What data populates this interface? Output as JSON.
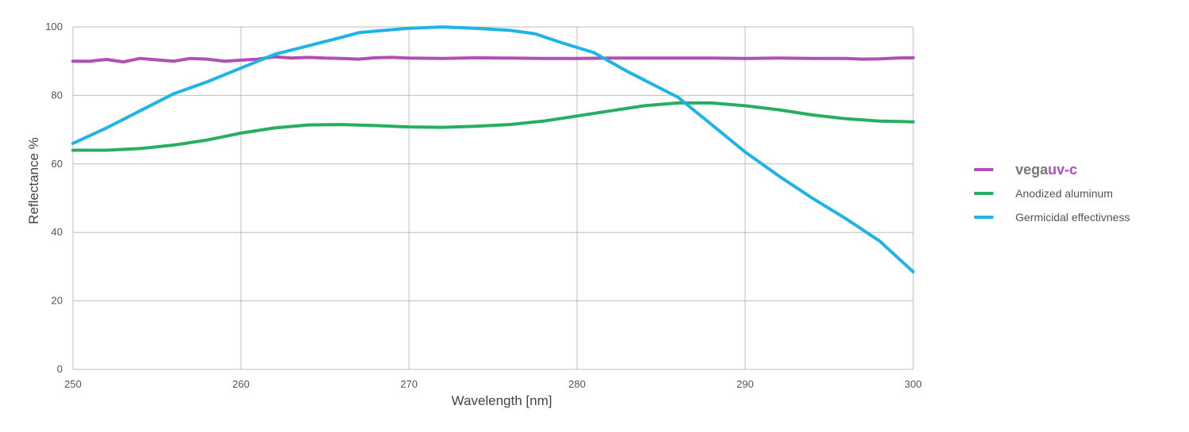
{
  "chart_data": {
    "type": "line",
    "xlabel": "Wavelength [nm]",
    "ylabel": "Reflectance %",
    "xlim": [
      250,
      300
    ],
    "ylim": [
      0,
      100
    ],
    "xticks": [
      250,
      260,
      270,
      280,
      290,
      300
    ],
    "yticks": [
      0,
      20,
      40,
      60,
      80,
      100
    ],
    "grid": true,
    "legend_position": "right",
    "series": [
      {
        "name": "vegauv-c",
        "name_parts": [
          "vega",
          "uv-c"
        ],
        "color": "#b04fb5",
        "x": [
          250,
          251,
          252,
          253,
          254,
          255,
          256,
          257,
          258,
          259,
          260,
          261,
          262,
          263,
          264,
          265,
          266,
          267,
          268,
          269,
          270,
          272,
          274,
          276,
          278,
          280,
          282,
          284,
          286,
          288,
          290,
          292,
          294,
          296,
          297,
          298,
          299,
          300
        ],
        "y": [
          90.0,
          90.0,
          90.5,
          89.8,
          90.8,
          90.4,
          90.0,
          90.8,
          90.6,
          90.0,
          90.3,
          90.6,
          91.3,
          90.9,
          91.1,
          90.9,
          90.8,
          90.6,
          91.0,
          91.1,
          90.9,
          90.8,
          91.0,
          90.9,
          90.8,
          90.8,
          90.9,
          90.9,
          90.9,
          90.9,
          90.8,
          90.9,
          90.8,
          90.8,
          90.6,
          90.7,
          90.9,
          91.0
        ]
      },
      {
        "name": "Anodized aluminum",
        "color": "#27ae60",
        "x": [
          250,
          252,
          254,
          256,
          258,
          260,
          262,
          264,
          266,
          268,
          270,
          272,
          274,
          276,
          278,
          280,
          282,
          284,
          286,
          288,
          290,
          292,
          294,
          296,
          298,
          300
        ],
        "y": [
          64.0,
          64.0,
          64.5,
          65.5,
          67.0,
          69.0,
          70.5,
          71.4,
          71.5,
          71.2,
          70.8,
          70.7,
          71.0,
          71.5,
          72.5,
          74.0,
          75.5,
          77.0,
          77.8,
          77.8,
          77.0,
          75.8,
          74.3,
          73.2,
          72.5,
          72.3
        ]
      },
      {
        "name": "Germicidal effectivness",
        "color": "#1eb4e6",
        "x": [
          250,
          252,
          254,
          256,
          258,
          260,
          262,
          264,
          266,
          267,
          268,
          270,
          272,
          274,
          276,
          277.5,
          279,
          281,
          283,
          286,
          288,
          290,
          292,
          294,
          296,
          298,
          300
        ],
        "y": [
          66.0,
          70.5,
          75.5,
          80.5,
          84.0,
          88.0,
          92.0,
          94.5,
          97.0,
          98.3,
          98.8,
          99.6,
          100.0,
          99.6,
          99.0,
          98.0,
          95.5,
          92.5,
          87.0,
          79.5,
          71.5,
          63.5,
          56.5,
          50.0,
          44.0,
          37.5,
          28.5
        ]
      }
    ]
  }
}
